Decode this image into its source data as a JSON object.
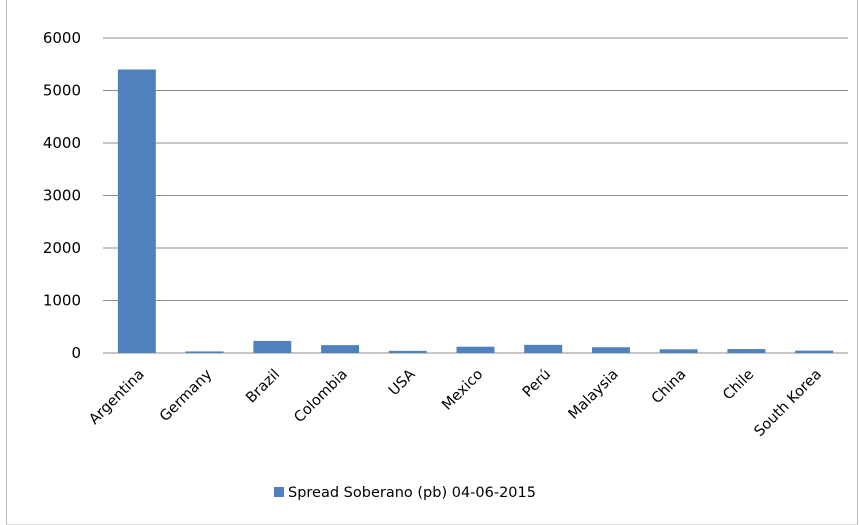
{
  "chart_data": {
    "type": "bar",
    "title": "",
    "xlabel": "",
    "ylabel": "",
    "categories": [
      "Argentina",
      "Germany",
      "Brazil",
      "Colombia",
      "USA",
      "Mexico",
      "Perú",
      "Malaysia",
      "China",
      "Chile",
      "South Korea"
    ],
    "series": [
      {
        "name": "Spread Soberano (pb) 04-06-2015",
        "color": "#4f81bd",
        "values": [
          5400,
          30,
          230,
          150,
          40,
          120,
          155,
          110,
          70,
          75,
          45
        ]
      }
    ],
    "ylim": [
      0,
      6000
    ],
    "yticks": [
      "0",
      "1000",
      "2000",
      "3000",
      "4000",
      "5000",
      "6000"
    ],
    "grid": true,
    "legend_position": "bottom"
  }
}
